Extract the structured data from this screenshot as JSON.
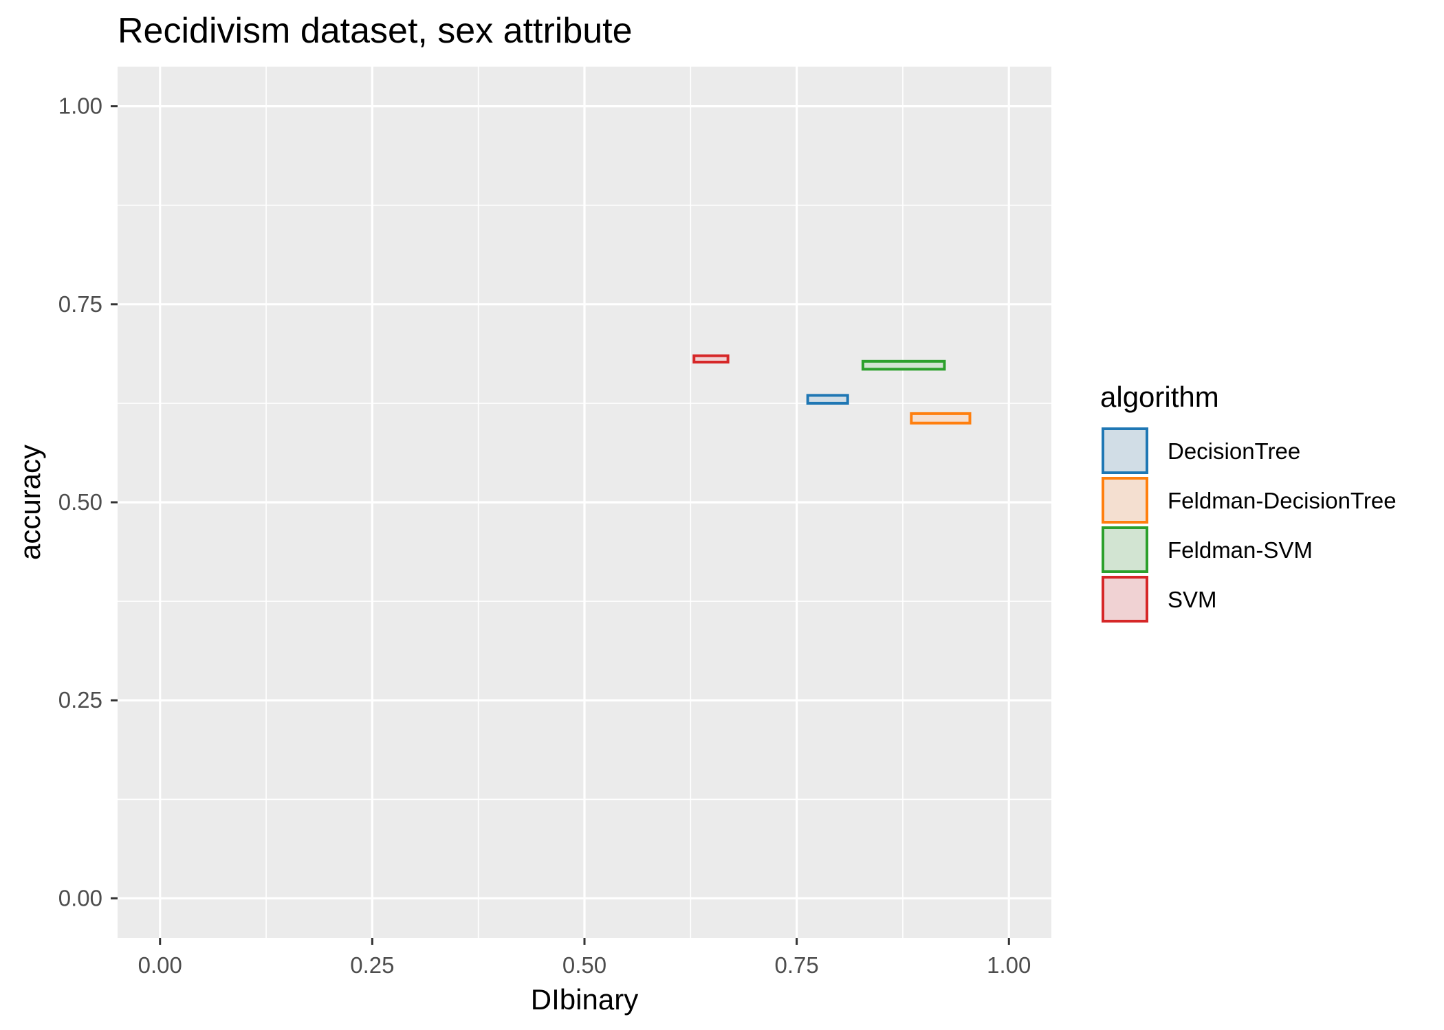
{
  "chart_data": {
    "type": "rectangle",
    "title": "Recidivism dataset, sex attribute",
    "xlabel": "DIbinary",
    "ylabel": "accuracy",
    "xlim": [
      -0.05,
      1.05
    ],
    "ylim": [
      -0.05,
      1.05
    ],
    "x_ticks": [
      0.0,
      0.25,
      0.5,
      0.75,
      1.0
    ],
    "x_tick_labels": [
      "0.00",
      "0.25",
      "0.50",
      "0.75",
      "1.00"
    ],
    "y_ticks": [
      0.0,
      0.25,
      0.5,
      0.75,
      1.0
    ],
    "y_tick_labels": [
      "0.00",
      "0.25",
      "0.50",
      "0.75",
      "1.00"
    ],
    "grid": true,
    "legend": {
      "title": "algorithm",
      "placement": "right"
    },
    "series": [
      {
        "name": "DecisionTree",
        "color": "#1F77B4",
        "fill": "#D1DDE6",
        "xmin": 0.763,
        "xmax": 0.81,
        "ymin": 0.625,
        "ymax": 0.635
      },
      {
        "name": "Feldman-DecisionTree",
        "color": "#FF7F0E",
        "fill": "#F4DFD0",
        "xmin": 0.885,
        "xmax": 0.954,
        "ymin": 0.6,
        "ymax": 0.612
      },
      {
        "name": "Feldman-SVM",
        "color": "#2CA02C",
        "fill": "#D2E4D2",
        "xmin": 0.828,
        "xmax": 0.924,
        "ymin": 0.668,
        "ymax": 0.678
      },
      {
        "name": "SVM",
        "color": "#D62728",
        "fill": "#F0D2D3",
        "xmin": 0.629,
        "xmax": 0.669,
        "ymin": 0.677,
        "ymax": 0.685
      }
    ]
  }
}
